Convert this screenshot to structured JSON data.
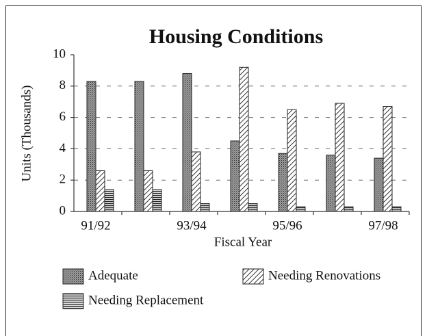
{
  "chart_data": {
    "type": "bar",
    "title": "Housing Conditions",
    "x_label": "Fiscal Year",
    "y_label": "Units (Thousands)",
    "categories": [
      "91/92",
      null,
      "93/94",
      null,
      "95/96",
      null,
      "97/98"
    ],
    "series": [
      {
        "name": "Adequate",
        "values": [
          8.3,
          8.3,
          8.8,
          4.5,
          3.7,
          3.6,
          3.4
        ]
      },
      {
        "name": "Needing Renovations",
        "values": [
          2.6,
          2.6,
          3.8,
          9.2,
          6.5,
          6.9,
          6.7
        ]
      },
      {
        "name": "Needing Replacement",
        "values": [
          1.4,
          1.4,
          0.5,
          0.5,
          0.3,
          0.3,
          0.3
        ]
      }
    ],
    "ylim": [
      0,
      10
    ],
    "yticks": [
      0,
      2,
      4,
      6,
      8,
      10
    ],
    "grid": true
  }
}
